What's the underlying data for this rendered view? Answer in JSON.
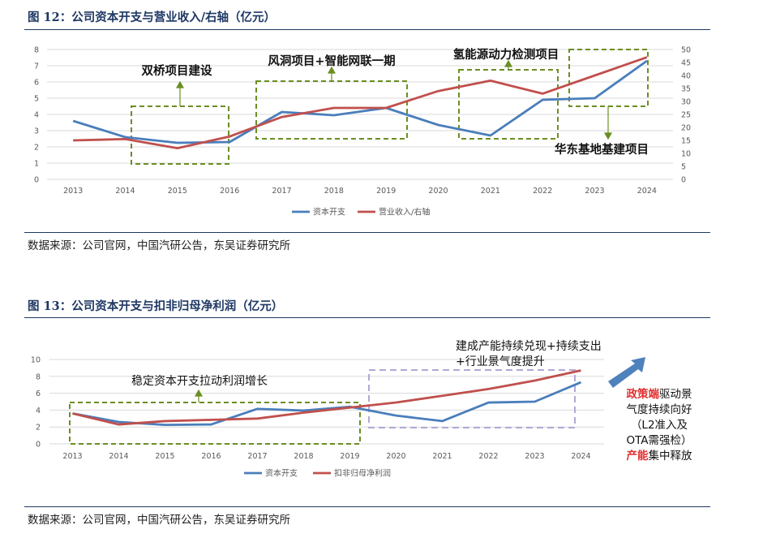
{
  "figure12": {
    "title": "图 12：公司资本开支与营业收入/右轴（亿元）",
    "source": "数据来源：公司官网，中国汽研公告，东吴证券研究所",
    "annotations": [
      "双桥项目建设",
      "风洞项目+智能网联一期",
      "氢能源动力检测项目",
      "华东基地基建项目"
    ]
  },
  "figure13": {
    "title": "图 13：公司资本开支与扣非归母净利润（亿元）",
    "source": "数据来源：公司官网，中国汽研公告，东吴证券研究所",
    "annotations": [
      "稳定资本开支拉动利润增长",
      "建成产能持续兑现+持续支出",
      "+行业景气度提升"
    ],
    "side_note": {
      "line1_red": "政策端",
      "line1_rest": "驱动景",
      "line2": "气度持续向好",
      "line3": "（L2准入及",
      "line4": "OTA需强检）",
      "line5_red": "产能",
      "line5_rest": "集中释放"
    }
  },
  "colors": {
    "blue": "#4a7ebb",
    "red": "#c0504d",
    "green": "#6b8e23",
    "purple": "#b4a7d6",
    "arrow_blue": "#4f81bd",
    "navy": "#1f3864"
  },
  "chart_data": [
    {
      "type": "line",
      "x": [
        "2013",
        "2014",
        "2015",
        "2016",
        "2017",
        "2018",
        "2019",
        "2020",
        "2021",
        "2022",
        "2023",
        "2024"
      ],
      "series": [
        {
          "name": "资本开支",
          "axis": "left",
          "values": [
            3.6,
            2.6,
            2.25,
            2.3,
            4.15,
            3.95,
            4.4,
            3.35,
            2.7,
            4.9,
            5.0,
            7.3
          ]
        },
        {
          "name": "营业收入/右轴",
          "axis": "right",
          "values": [
            15,
            15.5,
            12,
            16.5,
            24,
            27.5,
            27.5,
            34,
            38,
            33,
            40,
            47
          ]
        }
      ],
      "yticks_left": [
        "0",
        "1",
        "2",
        "3",
        "4",
        "5",
        "6",
        "7",
        "8"
      ],
      "yticks_right": [
        "0",
        "5",
        "10",
        "15",
        "20",
        "25",
        "30",
        "35",
        "40",
        "45",
        "50"
      ],
      "ylim_left": [
        0,
        8
      ],
      "ylim_right": [
        0,
        50
      ],
      "grid": true,
      "legend": "bottom"
    },
    {
      "type": "line",
      "x": [
        "2013",
        "2014",
        "2015",
        "2016",
        "2017",
        "2018",
        "2019",
        "2020",
        "2021",
        "2022",
        "2023",
        "2024"
      ],
      "series": [
        {
          "name": "资本开支",
          "values": [
            3.6,
            2.6,
            2.25,
            2.3,
            4.15,
            3.95,
            4.4,
            3.35,
            2.7,
            4.9,
            5.0,
            7.3
          ]
        },
        {
          "name": "扣非归母净利润",
          "values": [
            3.6,
            2.3,
            2.7,
            2.85,
            3.0,
            3.7,
            4.3,
            4.9,
            5.7,
            6.5,
            7.5,
            8.7
          ]
        }
      ],
      "yticks": [
        "0",
        "2",
        "4",
        "6",
        "8",
        "10"
      ],
      "ylim": [
        0,
        10
      ],
      "grid": true,
      "legend": "bottom"
    }
  ]
}
